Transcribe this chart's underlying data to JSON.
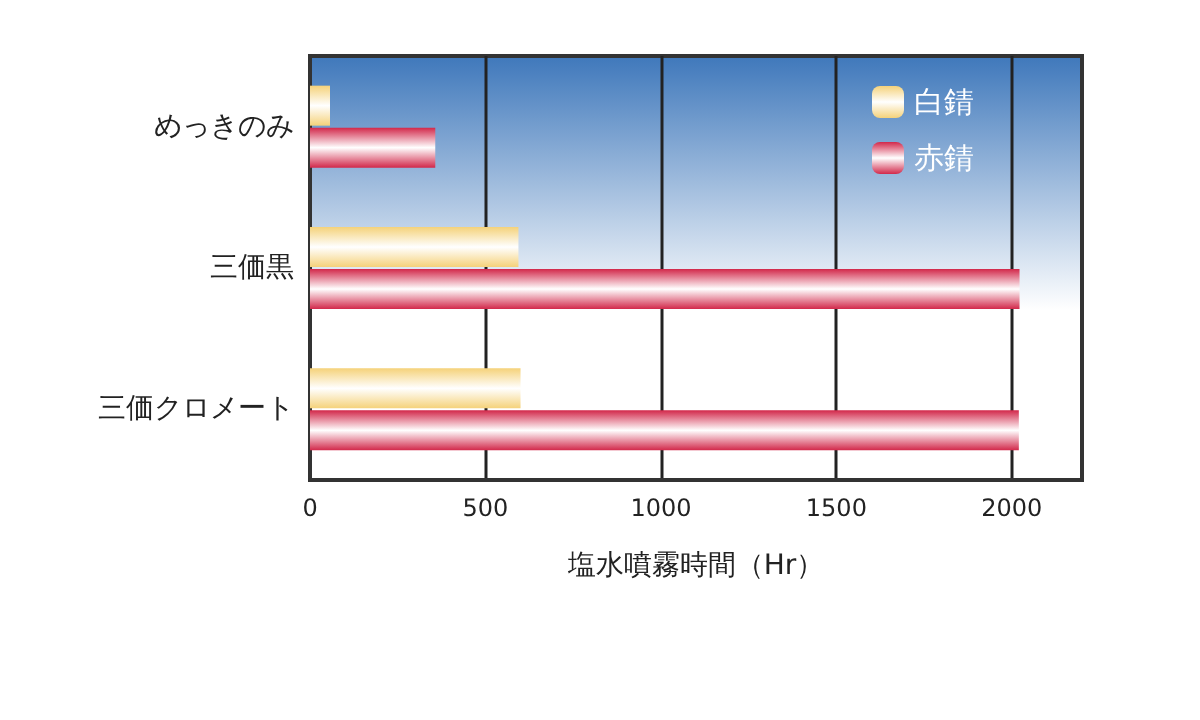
{
  "chart_data": {
    "type": "bar",
    "orientation": "horizontal",
    "xlabel": "塩水噴霧時間（Hr）",
    "categories": [
      "めっきのみ",
      "三価黒",
      "三価クロメート"
    ],
    "series": [
      {
        "name": "白錆",
        "color": "#f5d27a",
        "values": [
          57,
          594,
          600
        ]
      },
      {
        "name": "赤錆",
        "color": "#d2284a",
        "values": [
          357,
          2022,
          2020
        ]
      }
    ],
    "xlim": [
      0,
      2200
    ],
    "xticks": [
      0,
      500,
      1000,
      1500,
      2000
    ],
    "grid": "x",
    "legend": "top right"
  }
}
